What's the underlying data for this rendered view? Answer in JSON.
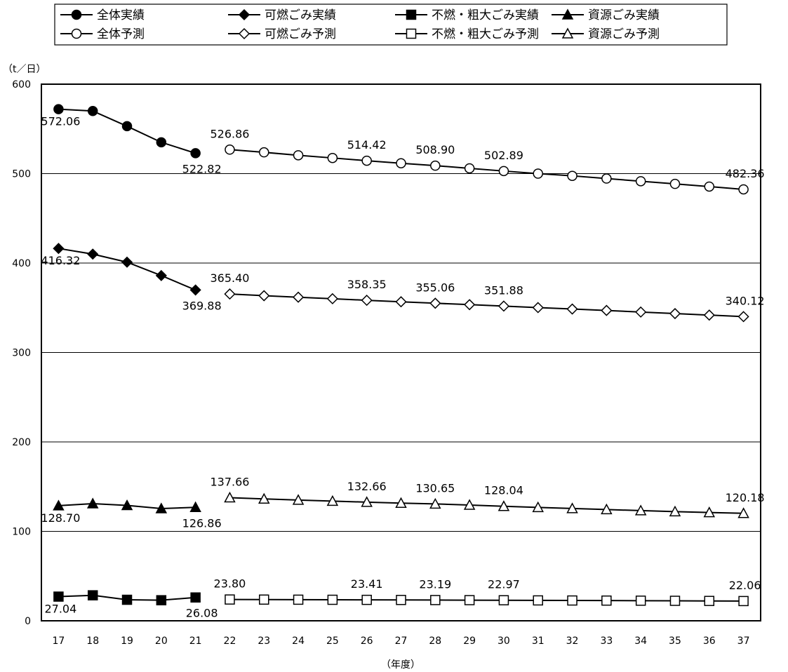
{
  "chart_data": {
    "type": "line",
    "y_unit_label": "（t／日）",
    "xlabel": "（年度）",
    "ylim": [
      0,
      600
    ],
    "y_ticks": [
      0,
      100,
      200,
      300,
      400,
      500,
      600
    ],
    "x_ticks": [
      17,
      18,
      19,
      20,
      21,
      22,
      23,
      24,
      25,
      26,
      27,
      28,
      29,
      30,
      31,
      32,
      33,
      34,
      35,
      36,
      37
    ],
    "grid": "horizontal",
    "legend_position": "top",
    "series": [
      {
        "name": "全体実績",
        "marker": "circle",
        "filled": true,
        "x": [
          17,
          18,
          19,
          20,
          21
        ],
        "y": [
          572.06,
          570,
          553,
          535,
          522.82
        ],
        "labels": {
          "17": "572.06",
          "21": "522.82"
        }
      },
      {
        "name": "可燃ごみ実績",
        "marker": "diamond",
        "filled": true,
        "x": [
          17,
          18,
          19,
          20,
          21
        ],
        "y": [
          416.32,
          410,
          401,
          386,
          369.88
        ],
        "labels": {
          "17": "416.32",
          "21": "369.88"
        }
      },
      {
        "name": "不燃・粗大ごみ実績",
        "marker": "square",
        "filled": true,
        "x": [
          17,
          18,
          19,
          20,
          21
        ],
        "y": [
          27.04,
          28.5,
          23.5,
          23,
          26.08
        ],
        "labels": {
          "17": "27.04",
          "21": "26.08"
        }
      },
      {
        "name": "資源ごみ実績",
        "marker": "triangle",
        "filled": true,
        "x": [
          17,
          18,
          19,
          20,
          21
        ],
        "y": [
          128.7,
          131,
          129,
          125.5,
          126.86
        ],
        "labels": {
          "17": "128.70",
          "21": "126.86"
        }
      },
      {
        "name": "全体予測",
        "marker": "circle",
        "filled": false,
        "x": [
          22,
          23,
          24,
          25,
          26,
          27,
          28,
          29,
          30,
          31,
          32,
          33,
          34,
          35,
          36,
          37
        ],
        "y": [
          526.86,
          523.8,
          520.5,
          517.5,
          514.42,
          511.6,
          508.9,
          505.9,
          502.89,
          500,
          497.5,
          494.5,
          491.5,
          488.5,
          485.5,
          482.36
        ],
        "labels": {
          "22": "526.86",
          "26": "514.42",
          "28": "508.90",
          "30": "502.89",
          "37": "482.36"
        }
      },
      {
        "name": "可燃ごみ予測",
        "marker": "diamond",
        "filled": false,
        "x": [
          22,
          23,
          24,
          25,
          26,
          27,
          28,
          29,
          30,
          31,
          32,
          33,
          34,
          35,
          36,
          37
        ],
        "y": [
          365.4,
          363.5,
          361.8,
          360.1,
          358.35,
          356.7,
          355.06,
          353.5,
          351.88,
          350.2,
          348.6,
          347.0,
          345.2,
          343.5,
          341.8,
          340.12
        ],
        "labels": {
          "22": "365.40",
          "26": "358.35",
          "28": "355.06",
          "30": "351.88",
          "37": "340.12"
        }
      },
      {
        "name": "不燃・粗大ごみ予測",
        "marker": "square",
        "filled": false,
        "x": [
          22,
          23,
          24,
          25,
          26,
          27,
          28,
          29,
          30,
          31,
          32,
          33,
          34,
          35,
          36,
          37
        ],
        "y": [
          23.8,
          23.7,
          23.6,
          23.5,
          23.41,
          23.3,
          23.19,
          23.08,
          22.97,
          22.8,
          22.7,
          22.6,
          22.5,
          22.35,
          22.2,
          22.06
        ],
        "labels": {
          "22": "23.80",
          "26": "23.41",
          "28": "23.19",
          "30": "22.97",
          "37": "22.06"
        }
      },
      {
        "name": "資源ごみ予測",
        "marker": "triangle",
        "filled": false,
        "x": [
          22,
          23,
          24,
          25,
          26,
          27,
          28,
          29,
          30,
          31,
          32,
          33,
          34,
          35,
          36,
          37
        ],
        "y": [
          137.66,
          136.3,
          135,
          133.8,
          132.66,
          131.6,
          130.65,
          129.4,
          128.04,
          126.8,
          125.6,
          124.4,
          123.2,
          122.1,
          121.1,
          120.18
        ],
        "labels": {
          "22": "137.66",
          "26": "132.66",
          "28": "130.65",
          "30": "128.04",
          "37": "120.18"
        }
      }
    ]
  }
}
